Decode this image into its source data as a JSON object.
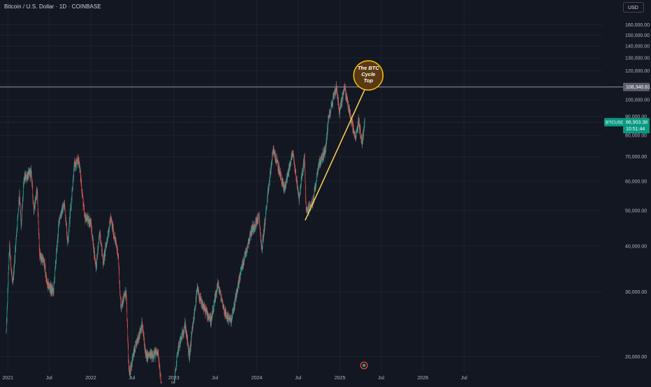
{
  "header": {
    "title": "Bitcoin / U.S. Dollar · 1D · COINBASE",
    "currency_label": "USD"
  },
  "annotation": {
    "circle_lines": [
      "The BTC",
      "Cycle",
      "Top"
    ]
  },
  "price_scale": {
    "horizontal_line_value": 108340.61,
    "horizontal_line_label": "108,340.61",
    "current_symbol": "BTCUSD",
    "current_price": 86903.38,
    "current_price_label": "86,903.38",
    "countdown": "10:51:44"
  },
  "colors": {
    "background": "#131722",
    "up": "#26a69a",
    "down": "#ef5350",
    "trendline": "#ffd54f",
    "circle_stroke": "#ffc107",
    "circle_fill": "#5a3a12",
    "current_price_tag": "#089981",
    "horizontal_line": "#9598a1"
  },
  "chart_data": {
    "type": "candlestick",
    "symbol": "BTCUSD",
    "interval": "1D",
    "exchange": "COINBASE",
    "y_axis": {
      "scale": "log",
      "ylim": [
        16500,
        172000
      ],
      "ticks": [
        20000,
        30000,
        40000,
        50000,
        60000,
        70000,
        80000,
        90000,
        100000,
        110000,
        120000,
        130000,
        140000,
        150000,
        160000
      ],
      "tick_labels": [
        "20,000.00",
        "30,000.00",
        "40,000.00",
        "50,000.00",
        "60,000.00",
        "70,000.00",
        "80,000.00",
        "90,000.00",
        "100,000.00",
        "110,000.00",
        "120,000.00",
        "130,000.00",
        "140,000.00",
        "150,000.00",
        "160,000.00"
      ]
    },
    "x_axis": {
      "range": [
        "2020-12-25",
        "2026-09-01"
      ],
      "ticks": [
        "2021-01-01",
        "2021-07-01",
        "2022-01-01",
        "2022-07-01",
        "2023-01-01",
        "2023-07-01",
        "2024-01-01",
        "2024-07-01",
        "2025-01-01",
        "2025-07-01",
        "2026-01-01",
        "2026-07-01"
      ],
      "tick_labels": [
        "2021",
        "Jul",
        "2022",
        "Jul",
        "2023",
        "Jul",
        "2024",
        "Jul",
        "2025",
        "Jul",
        "2026",
        "Jul"
      ]
    },
    "price_path": [
      [
        "2020-12-25",
        23500
      ],
      [
        "2021-01-08",
        40000
      ],
      [
        "2021-01-22",
        31000
      ],
      [
        "2021-02-21",
        56000
      ],
      [
        "2021-02-28",
        45000
      ],
      [
        "2021-03-13",
        61000
      ],
      [
        "2021-04-14",
        63500
      ],
      [
        "2021-04-25",
        50000
      ],
      [
        "2021-05-10",
        57000
      ],
      [
        "2021-05-20",
        38000
      ],
      [
        "2021-06-10",
        36000
      ],
      [
        "2021-06-22",
        31500
      ],
      [
        "2021-07-20",
        30000
      ],
      [
        "2021-08-15",
        47500
      ],
      [
        "2021-09-07",
        52000
      ],
      [
        "2021-09-21",
        41000
      ],
      [
        "2021-10-20",
        66000
      ],
      [
        "2021-11-10",
        68500
      ],
      [
        "2021-12-04",
        48000
      ],
      [
        "2021-12-31",
        46500
      ],
      [
        "2022-01-24",
        35000
      ],
      [
        "2022-02-10",
        44000
      ],
      [
        "2022-02-24",
        36000
      ],
      [
        "2022-03-29",
        47500
      ],
      [
        "2022-05-01",
        38000
      ],
      [
        "2022-05-12",
        27500
      ],
      [
        "2022-06-05",
        30000
      ],
      [
        "2022-06-18",
        17800
      ],
      [
        "2022-07-05",
        20000
      ],
      [
        "2022-08-14",
        24500
      ],
      [
        "2022-09-01",
        20000
      ],
      [
        "2022-10-25",
        20500
      ],
      [
        "2022-11-09",
        15800
      ],
      [
        "2022-12-31",
        16500
      ],
      [
        "2023-01-20",
        21000
      ],
      [
        "2023-02-20",
        24500
      ],
      [
        "2023-03-10",
        20000
      ],
      [
        "2023-04-14",
        30500
      ],
      [
        "2023-05-01",
        28000
      ],
      [
        "2023-06-15",
        25000
      ],
      [
        "2023-07-13",
        31500
      ],
      [
        "2023-08-17",
        26000
      ],
      [
        "2023-09-11",
        25000
      ],
      [
        "2023-10-24",
        34500
      ],
      [
        "2023-12-08",
        44000
      ],
      [
        "2024-01-11",
        48000
      ],
      [
        "2024-01-23",
        39000
      ],
      [
        "2024-02-28",
        62000
      ],
      [
        "2024-03-14",
        73500
      ],
      [
        "2024-05-01",
        57000
      ],
      [
        "2024-06-07",
        72000
      ],
      [
        "2024-07-05",
        54000
      ],
      [
        "2024-07-29",
        70000
      ],
      [
        "2024-08-05",
        49500
      ],
      [
        "2024-09-06",
        53000
      ],
      [
        "2024-09-27",
        66000
      ],
      [
        "2024-10-29",
        73000
      ],
      [
        "2024-11-12",
        89000
      ],
      [
        "2024-12-05",
        103000
      ],
      [
        "2024-12-17",
        108300
      ],
      [
        "2024-12-30",
        92000
      ],
      [
        "2025-01-20",
        109000
      ],
      [
        "2025-02-05",
        97000
      ],
      [
        "2025-02-25",
        85000
      ],
      [
        "2025-03-10",
        78000
      ],
      [
        "2025-03-25",
        88000
      ],
      [
        "2025-04-07",
        76000
      ],
      [
        "2025-04-20",
        86903
      ]
    ],
    "trendline": {
      "from": [
        "2024-08-01",
        47000
      ],
      "to": [
        "2025-05-17",
        116000
      ]
    },
    "annotation_circle": {
      "date": "2025-05-06",
      "price": 116500,
      "text": [
        "The BTC",
        "Cycle",
        "Top"
      ]
    },
    "horizontal_line": 108340.61,
    "last_price": 86903.38
  }
}
